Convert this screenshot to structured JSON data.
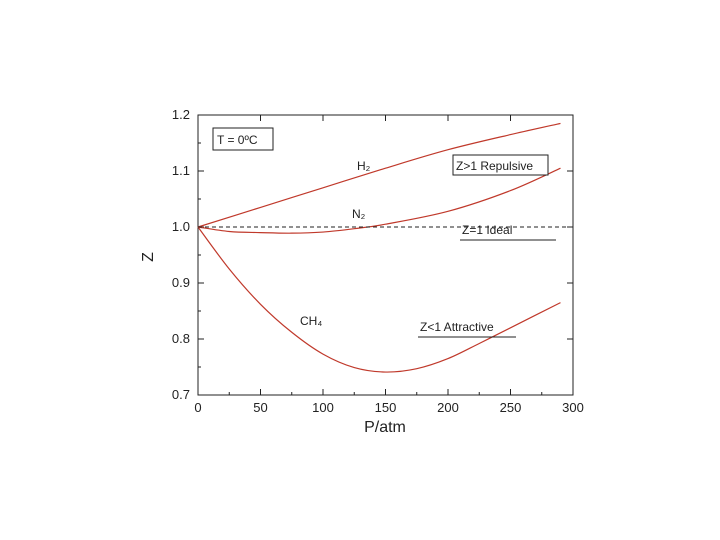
{
  "chart_data": {
    "type": "line",
    "xlabel": "P/atm",
    "ylabel": "Z",
    "xlim": [
      0,
      300
    ],
    "ylim": [
      0.7,
      1.2
    ],
    "xticks": [
      "0",
      "50",
      "100",
      "150",
      "200",
      "250",
      "300"
    ],
    "yticks": [
      "0.7",
      "0.8",
      "0.9",
      "1.0",
      "1.1",
      "1.2"
    ],
    "temperature_box": "T = 0ºC",
    "series": [
      {
        "name": "H₂",
        "color": "#c0392b",
        "x": [
          0,
          50,
          100,
          150,
          200,
          250,
          290
        ],
        "y": [
          1.0,
          1.035,
          1.07,
          1.105,
          1.138,
          1.165,
          1.185
        ]
      },
      {
        "name": "N₂",
        "color": "#c0392b",
        "x": [
          0,
          25,
          50,
          75,
          100,
          125,
          150,
          200,
          250,
          290
        ],
        "y": [
          1.0,
          0.992,
          0.99,
          0.989,
          0.991,
          0.997,
          1.005,
          1.028,
          1.065,
          1.105
        ]
      },
      {
        "name": "CH₄",
        "color": "#c0392b",
        "x": [
          0,
          25,
          50,
          75,
          100,
          125,
          150,
          175,
          200,
          225,
          250,
          290
        ],
        "y": [
          1.0,
          0.925,
          0.862,
          0.812,
          0.773,
          0.749,
          0.741,
          0.747,
          0.765,
          0.792,
          0.82,
          0.865
        ]
      },
      {
        "name": "",
        "style": "dashed",
        "color": "#222222",
        "x": [
          0,
          300
        ],
        "y": [
          1.0,
          1.0
        ]
      }
    ],
    "annotations": [
      {
        "text": "Z>1 Repulsive",
        "x": 208,
        "y": 1.105
      },
      {
        "text": "Z=1 Ideal",
        "x": 213,
        "y": 0.996
      },
      {
        "text": "Z<1 Attractive",
        "x": 178,
        "y": 0.811
      }
    ],
    "grid": false,
    "legend": "none"
  }
}
